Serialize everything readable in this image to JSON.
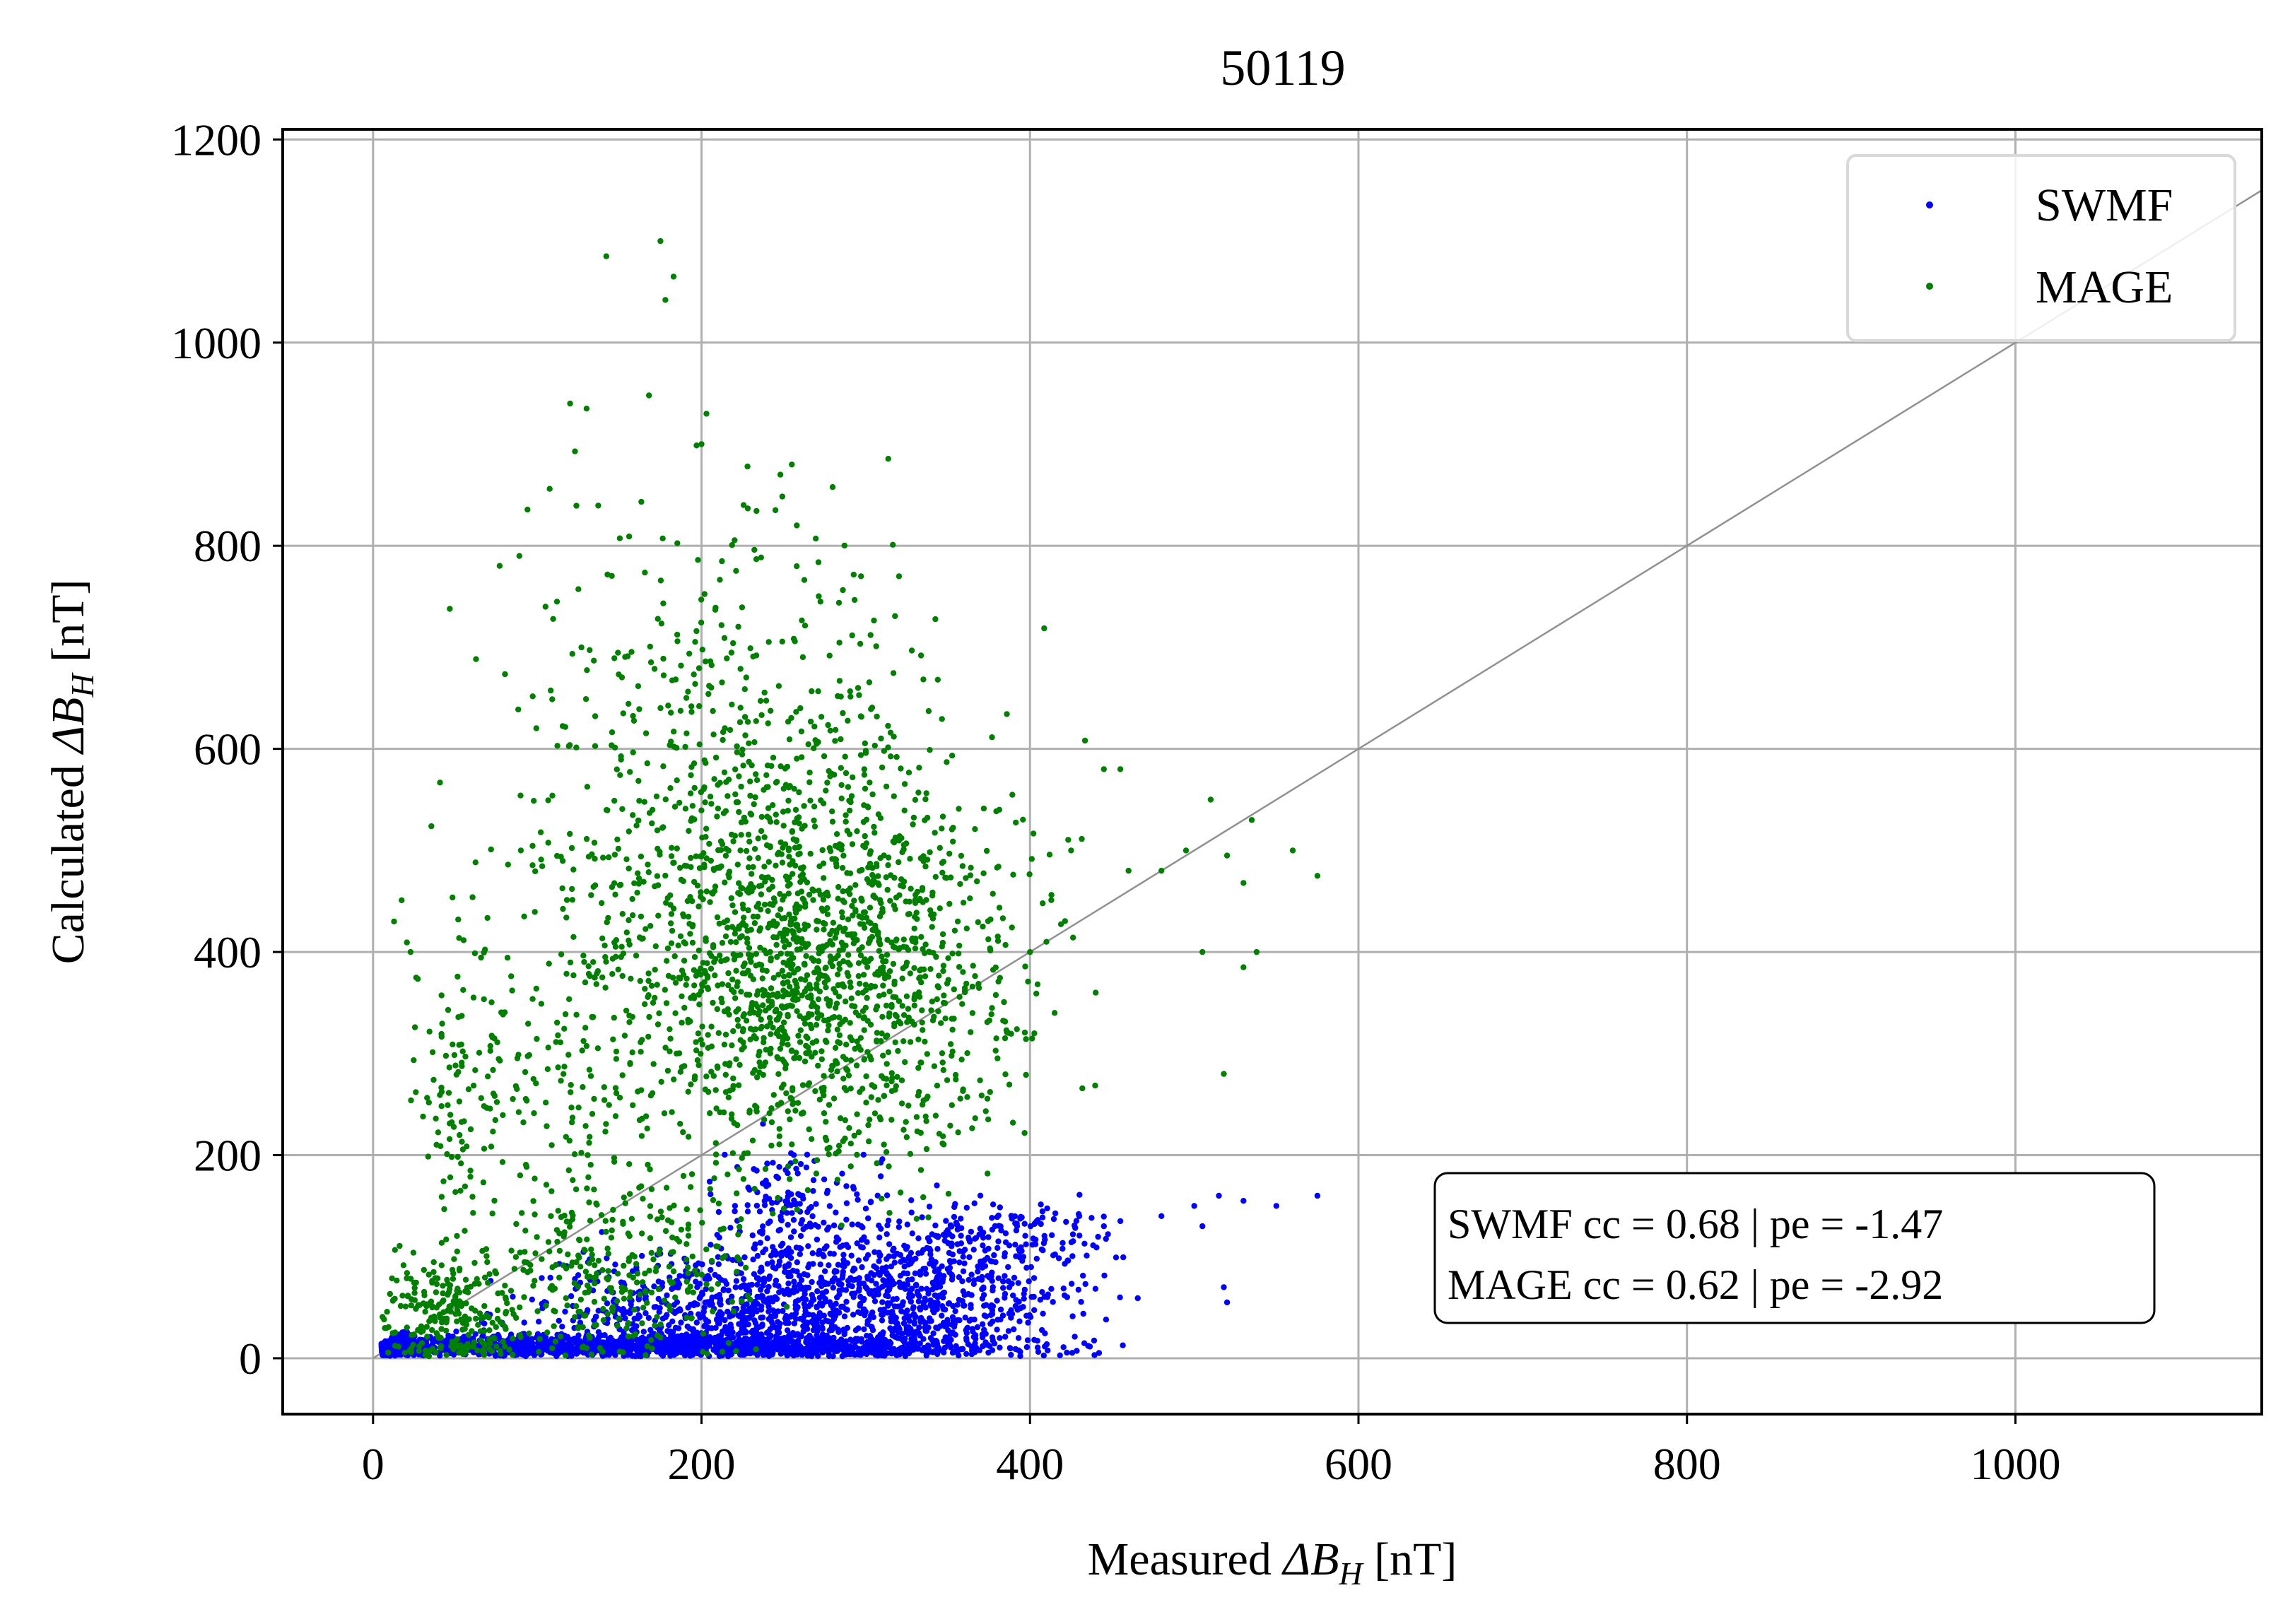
{
  "chart_data": {
    "type": "scatter",
    "title": "50119",
    "xlabel": "Measured ΔB_H [nT]",
    "xlabel_parts": {
      "prefix": "Measured ",
      "symbol": "ΔB",
      "subscript": "H",
      "suffix": " [nT]"
    },
    "ylabel": "Calculated ΔB_H [nT]",
    "ylabel_parts": {
      "prefix": "Calculated ",
      "symbol": "ΔB",
      "subscript": "H",
      "suffix": " [nT]"
    },
    "xlim": [
      -55,
      1150
    ],
    "ylim": [
      -55,
      1210
    ],
    "x_ticks": [
      0,
      200,
      400,
      600,
      800,
      1000
    ],
    "y_ticks": [
      0,
      200,
      400,
      600,
      800,
      1000,
      1200
    ],
    "grid": true,
    "legend": {
      "placement": "top-right"
    },
    "reference_line": {
      "from": [
        0,
        0
      ],
      "to": [
        1150,
        1150
      ],
      "color": "#919191"
    },
    "series": [
      {
        "name": "SWMF",
        "color": "#0000ff",
        "clusters": [
          {
            "center": [
              150,
              12
            ],
            "spread": [
              110,
              6
            ],
            "count": 1400
          },
          {
            "center": [
              260,
              45
            ],
            "spread": [
              75,
              30
            ],
            "count": 1300
          },
          {
            "center": [
              255,
              150
            ],
            "spread": [
              25,
              35
            ],
            "count": 160
          },
          {
            "center": [
              340,
              95
            ],
            "spread": [
              45,
              30
            ],
            "count": 260
          },
          {
            "center": [
              390,
              125
            ],
            "spread": [
              35,
              15
            ],
            "count": 70
          }
        ],
        "points": [
          [
            455,
            135
          ],
          [
            480,
            140
          ],
          [
            500,
            150
          ],
          [
            505,
            130
          ],
          [
            515,
            160
          ],
          [
            530,
            155
          ],
          [
            550,
            150
          ],
          [
            575,
            160
          ],
          [
            518,
            70
          ],
          [
            520,
            55
          ],
          [
            430,
            140
          ],
          [
            445,
            130
          ],
          [
            362,
            30
          ],
          [
            372,
            28
          ]
        ]
      },
      {
        "name": "MAGE",
        "color": "#007f00",
        "clusters": [
          {
            "center": [
              265,
              380
            ],
            "spread": [
              50,
              90
            ],
            "count": 1100
          },
          {
            "center": [
              220,
              520
            ],
            "spread": [
              65,
              150
            ],
            "count": 700
          },
          {
            "center": [
              150,
              80
            ],
            "spread": [
              35,
              45
            ],
            "count": 300
          },
          {
            "center": [
              45,
              40
            ],
            "spread": [
              22,
              30
            ],
            "count": 260
          },
          {
            "center": [
              100,
              300
            ],
            "spread": [
              40,
              90
            ],
            "count": 180
          },
          {
            "center": [
              330,
              400
            ],
            "spread": [
              45,
              100
            ],
            "count": 260
          },
          {
            "center": [
              50,
              230
            ],
            "spread": [
              10,
              60
            ],
            "count": 60
          }
        ],
        "points": [
          [
            142,
            1085
          ],
          [
            175,
            1100
          ],
          [
            178,
            1042
          ],
          [
            183,
            1065
          ],
          [
            120,
            940
          ],
          [
            130,
            935
          ],
          [
            168,
            948
          ],
          [
            203,
            930
          ],
          [
            200,
            900
          ],
          [
            255,
            880
          ],
          [
            248,
            870
          ],
          [
            228,
            878
          ],
          [
            258,
            820
          ],
          [
            245,
            835
          ],
          [
            105,
            740
          ],
          [
            112,
            745
          ],
          [
            90,
            500
          ],
          [
            92,
            435
          ],
          [
            445,
            580
          ],
          [
            455,
            580
          ],
          [
            510,
            550
          ],
          [
            520,
            495
          ],
          [
            535,
            530
          ],
          [
            560,
            500
          ],
          [
            575,
            475
          ],
          [
            530,
            468
          ],
          [
            505,
            400
          ],
          [
            538,
            400
          ],
          [
            530,
            385
          ],
          [
            518,
            280
          ],
          [
            480,
            480
          ],
          [
            495,
            500
          ],
          [
            425,
            500
          ],
          [
            460,
            480
          ],
          [
            410,
            410
          ],
          [
            400,
            400
          ],
          [
            415,
            340
          ],
          [
            440,
            360
          ]
        ]
      }
    ],
    "annotation_lines": [
      "SWMF cc = 0.68 | pe = -1.47",
      "MAGE cc = 0.62 | pe = -2.92"
    ]
  }
}
